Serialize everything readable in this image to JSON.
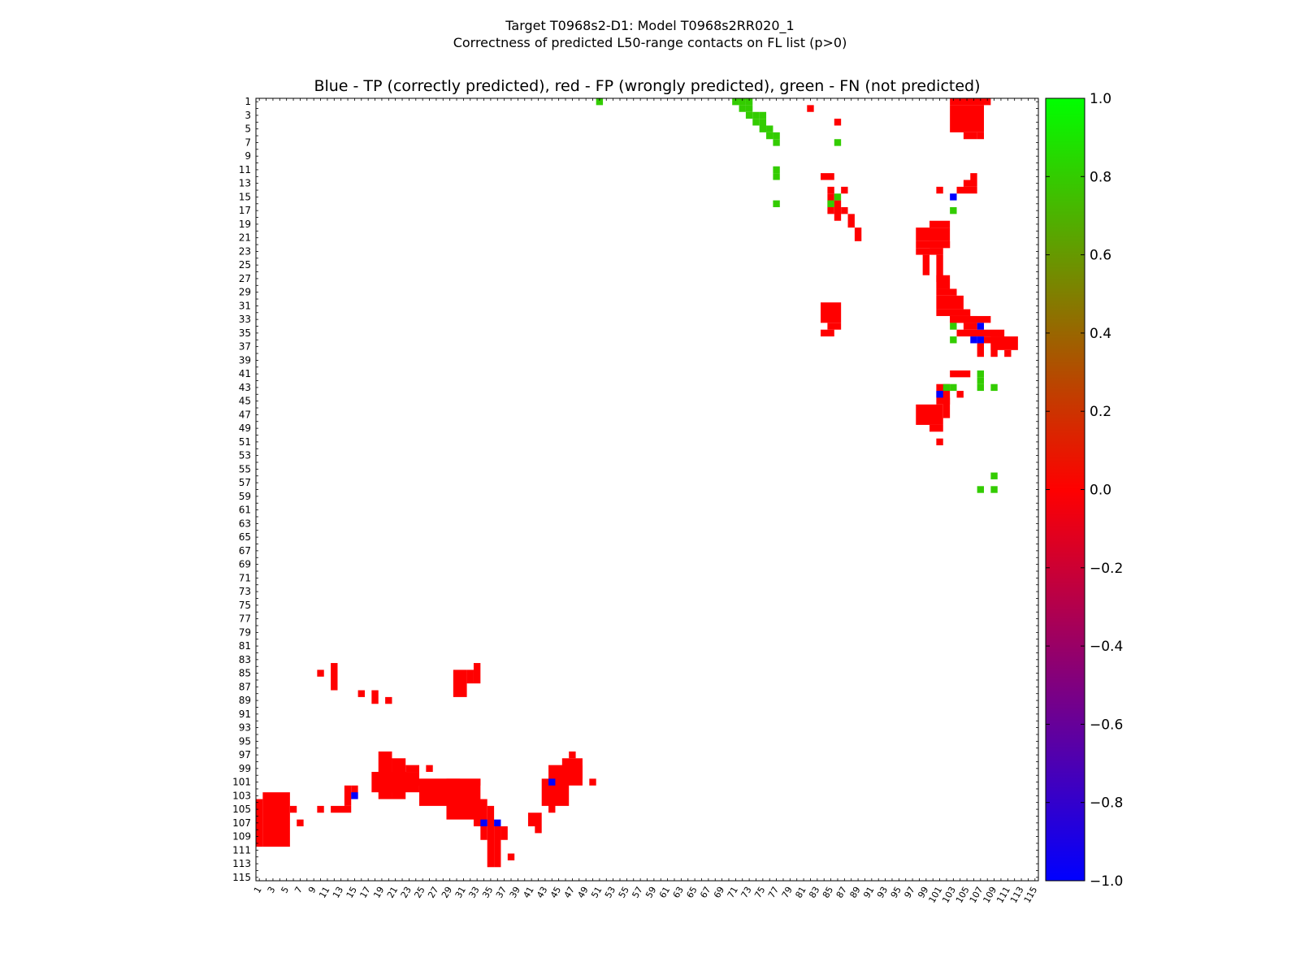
{
  "chart_data": {
    "type": "heatmap",
    "suptitle_line1": "Target T0968s2-D1: Model T0968s2RR020_1",
    "suptitle_line2": "Correctness of predicted L50-range contacts on FL list (p>0)",
    "title": "Blue - TP (correctly predicted), red - FP (wrongly predicted), green - FN (not predicted)",
    "n": 115,
    "xlim": [
      1,
      115
    ],
    "ylim": [
      1,
      115
    ],
    "x_ticks": [
      1,
      3,
      5,
      7,
      9,
      11,
      13,
      15,
      17,
      19,
      21,
      23,
      25,
      27,
      29,
      31,
      33,
      35,
      37,
      39,
      41,
      43,
      45,
      47,
      49,
      51,
      53,
      55,
      57,
      59,
      61,
      63,
      65,
      67,
      69,
      71,
      73,
      75,
      77,
      79,
      81,
      83,
      85,
      87,
      89,
      91,
      93,
      95,
      97,
      99,
      101,
      103,
      105,
      107,
      109,
      111,
      113,
      115
    ],
    "y_ticks": [
      1,
      3,
      5,
      7,
      9,
      11,
      13,
      15,
      17,
      19,
      21,
      23,
      25,
      27,
      29,
      31,
      33,
      35,
      37,
      39,
      41,
      43,
      45,
      47,
      49,
      51,
      53,
      55,
      57,
      59,
      61,
      63,
      65,
      67,
      69,
      71,
      73,
      75,
      77,
      79,
      81,
      83,
      85,
      87,
      89,
      91,
      93,
      95,
      97,
      99,
      101,
      103,
      105,
      107,
      109,
      111,
      113,
      115
    ],
    "colorbar": {
      "min": -1.0,
      "max": 1.0,
      "tick_labels": [
        "1.0",
        "0.8",
        "0.6",
        "0.4",
        "0.2",
        "0.0",
        "−0.2",
        "−0.4",
        "−0.6",
        "−0.8",
        "−1.0"
      ],
      "tick_values": [
        1.0,
        0.8,
        0.6,
        0.4,
        0.2,
        0.0,
        -0.2,
        -0.4,
        -0.6,
        -0.8,
        -1.0
      ],
      "colors": [
        "#0000ff",
        "#ff0000",
        "#00ff00"
      ]
    },
    "legend": {
      "tp_value": -1,
      "fp_value": 0,
      "fn_value": 0.8
    },
    "fn_cells": [
      [
        71,
        1
      ],
      [
        72,
        1
      ],
      [
        73,
        1
      ],
      [
        72,
        2
      ],
      [
        73,
        2
      ],
      [
        73,
        3
      ],
      [
        74,
        3
      ],
      [
        75,
        3
      ],
      [
        74,
        4
      ],
      [
        75,
        4
      ],
      [
        75,
        5
      ],
      [
        76,
        5
      ],
      [
        76,
        6
      ],
      [
        77,
        6
      ],
      [
        77,
        7
      ],
      [
        51,
        1
      ],
      [
        77,
        11
      ],
      [
        77,
        12
      ],
      [
        77,
        16
      ],
      [
        85,
        16
      ],
      [
        86,
        15
      ],
      [
        86,
        7
      ],
      [
        103,
        17
      ],
      [
        103,
        34
      ],
      [
        103,
        36
      ],
      [
        102,
        43
      ],
      [
        103,
        43
      ],
      [
        107,
        41
      ],
      [
        107,
        42
      ],
      [
        107,
        43
      ],
      [
        109,
        43
      ],
      [
        109,
        56
      ],
      [
        107,
        58
      ],
      [
        109,
        58
      ]
    ],
    "tp_cells": [
      [
        103,
        15
      ],
      [
        107,
        34
      ],
      [
        106,
        36
      ],
      [
        107,
        36
      ],
      [
        101,
        44
      ],
      [
        15,
        103
      ],
      [
        44,
        101
      ],
      [
        34,
        107
      ],
      [
        36,
        107
      ]
    ],
    "fp_rects": [
      [
        103,
        108,
        1,
        1
      ],
      [
        103,
        107,
        2,
        5
      ],
      [
        105,
        106,
        6,
        6
      ],
      [
        107,
        107,
        6,
        6
      ],
      [
        82,
        82,
        2,
        2
      ],
      [
        86,
        86,
        4,
        4
      ],
      [
        84,
        85,
        12,
        12
      ],
      [
        85,
        85,
        14,
        14
      ],
      [
        86,
        86,
        16,
        18
      ],
      [
        87,
        87,
        14,
        14
      ],
      [
        85,
        85,
        15,
        17
      ],
      [
        87,
        87,
        17,
        17
      ],
      [
        88,
        88,
        18,
        19
      ],
      [
        89,
        89,
        20,
        21
      ],
      [
        100,
        102,
        19,
        19
      ],
      [
        98,
        102,
        20,
        21
      ],
      [
        98,
        102,
        22,
        22
      ],
      [
        100,
        102,
        22,
        22
      ],
      [
        98,
        99,
        23,
        23
      ],
      [
        100,
        101,
        23,
        23
      ],
      [
        99,
        99,
        24,
        26
      ],
      [
        101,
        101,
        24,
        27
      ],
      [
        101,
        102,
        27,
        28
      ],
      [
        101,
        103,
        29,
        29
      ],
      [
        101,
        104,
        30,
        31
      ],
      [
        101,
        105,
        32,
        32
      ],
      [
        103,
        106,
        33,
        33
      ],
      [
        103,
        108,
        33,
        33
      ],
      [
        105,
        106,
        34,
        34
      ],
      [
        104,
        110,
        35,
        35
      ],
      [
        108,
        110,
        36,
        36
      ],
      [
        109,
        112,
        36,
        37
      ],
      [
        107,
        107,
        37,
        38
      ],
      [
        109,
        109,
        37,
        38
      ],
      [
        111,
        111,
        38,
        38
      ],
      [
        84,
        86,
        31,
        33
      ],
      [
        85,
        86,
        34,
        34
      ],
      [
        84,
        85,
        35,
        35
      ],
      [
        105,
        106,
        13,
        13
      ],
      [
        104,
        106,
        14,
        14
      ],
      [
        106,
        106,
        12,
        12
      ],
      [
        103,
        105,
        41,
        41
      ],
      [
        101,
        102,
        43,
        45
      ],
      [
        102,
        102,
        45,
        47
      ],
      [
        98,
        101,
        46,
        48
      ],
      [
        100,
        101,
        49,
        49
      ],
      [
        101,
        101,
        51,
        51
      ],
      [
        104,
        104,
        44,
        44
      ],
      [
        101,
        101,
        14,
        14
      ],
      [
        2,
        5,
        103,
        110
      ],
      [
        1,
        1,
        104,
        110
      ],
      [
        6,
        6,
        105,
        105
      ],
      [
        7,
        7,
        107,
        107
      ],
      [
        10,
        10,
        85,
        85
      ],
      [
        10,
        10,
        105,
        105
      ],
      [
        12,
        12,
        84,
        87
      ],
      [
        12,
        14,
        105,
        105
      ],
      [
        14,
        14,
        102,
        104
      ],
      [
        15,
        15,
        102,
        103
      ],
      [
        16,
        16,
        88,
        88
      ],
      [
        18,
        18,
        88,
        89
      ],
      [
        20,
        20,
        89,
        89
      ],
      [
        18,
        24,
        100,
        102
      ],
      [
        19,
        20,
        97,
        103
      ],
      [
        21,
        22,
        98,
        103
      ],
      [
        23,
        24,
        99,
        99
      ],
      [
        26,
        26,
        99,
        99
      ],
      [
        24,
        33,
        101,
        101
      ],
      [
        25,
        30,
        101,
        104
      ],
      [
        29,
        33,
        101,
        106
      ],
      [
        30,
        31,
        85,
        88
      ],
      [
        32,
        32,
        85,
        86
      ],
      [
        33,
        33,
        84,
        86
      ],
      [
        33,
        34,
        104,
        107
      ],
      [
        35,
        35,
        105,
        113
      ],
      [
        34,
        34,
        108,
        109
      ],
      [
        36,
        36,
        108,
        113
      ],
      [
        37,
        37,
        108,
        109
      ],
      [
        38,
        38,
        112,
        112
      ],
      [
        43,
        46,
        101,
        104
      ],
      [
        44,
        48,
        99,
        101
      ],
      [
        46,
        48,
        98,
        100
      ],
      [
        47,
        47,
        97,
        97
      ],
      [
        50,
        50,
        101,
        101
      ],
      [
        41,
        42,
        106,
        107
      ],
      [
        42,
        42,
        108,
        108
      ],
      [
        44,
        44,
        104,
        105
      ]
    ]
  }
}
